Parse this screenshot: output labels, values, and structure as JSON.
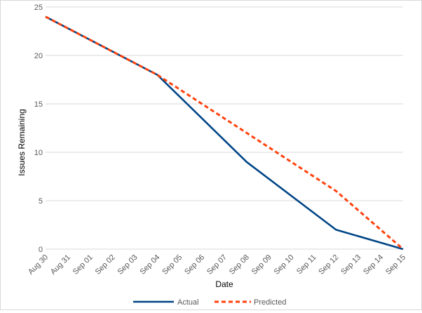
{
  "chart_data": {
    "type": "line",
    "title": "",
    "xlabel": "Date",
    "ylabel": "Issues Remaining",
    "ylim": [
      0,
      25
    ],
    "yticks": [
      0,
      5,
      10,
      15,
      20,
      25
    ],
    "grid": true,
    "legend_position": "bottom",
    "categories": [
      "Aug 30",
      "Aug 31",
      "Sep 01",
      "Sep 02",
      "Sep 03",
      "Sep 04",
      "Sep 05",
      "Sep 06",
      "Sep 07",
      "Sep 08",
      "Sep 09",
      "Sep 10",
      "Sep 11",
      "Sep 12",
      "Sep 13",
      "Sep 14",
      "Sep 15"
    ],
    "series": [
      {
        "name": "Actual",
        "color": "#004586",
        "style": "solid",
        "points": [
          {
            "x": "Aug 30",
            "y": 24
          },
          {
            "x": "Sep 04",
            "y": 18
          },
          {
            "x": "Sep 08",
            "y": 9
          },
          {
            "x": "Sep 12",
            "y": 2
          },
          {
            "x": "Sep 15",
            "y": 0
          }
        ]
      },
      {
        "name": "Predicted",
        "color": "#ff420e",
        "style": "dashed",
        "points": [
          {
            "x": "Aug 30",
            "y": 24
          },
          {
            "x": "Sep 04",
            "y": 18
          },
          {
            "x": "Sep 12",
            "y": 6
          },
          {
            "x": "Sep 15",
            "y": 0
          }
        ]
      }
    ]
  }
}
